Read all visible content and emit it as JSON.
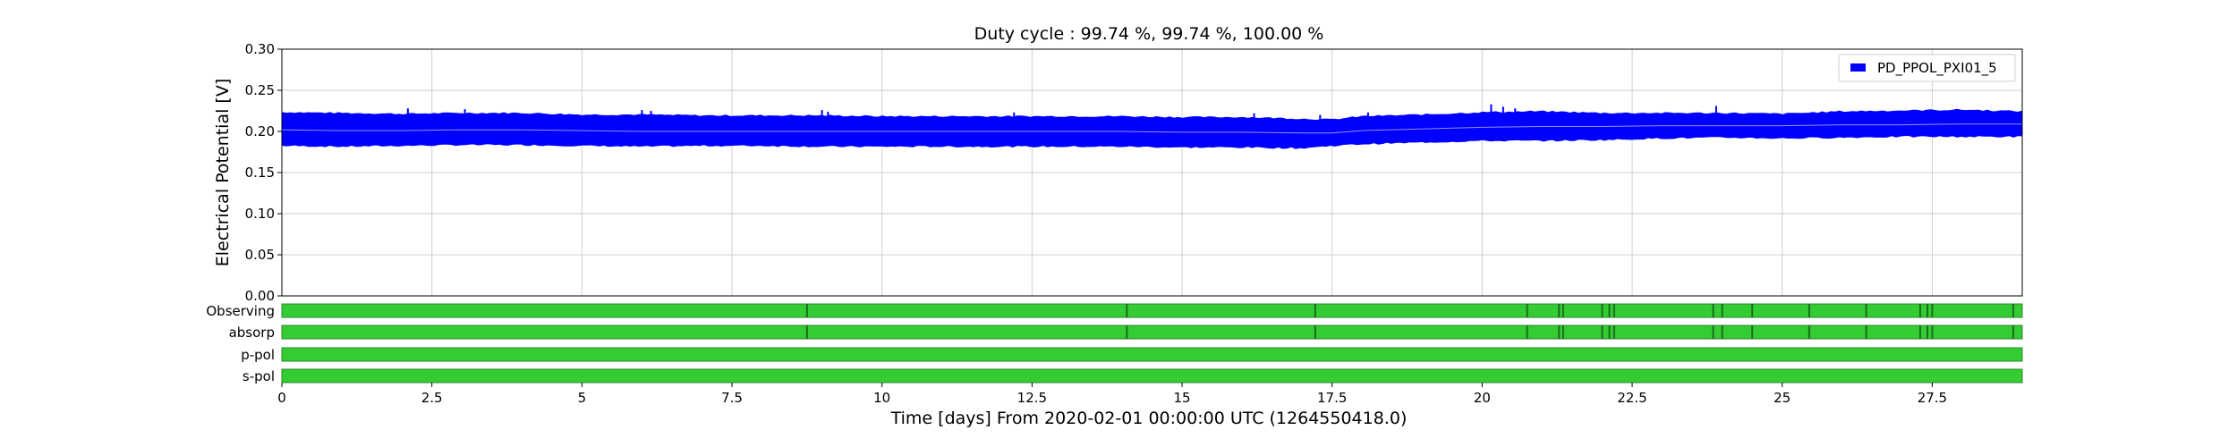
{
  "chart_data": {
    "type": "area",
    "title": "Duty cycle : 99.74 %, 99.74 %, 100.00 %",
    "xlabel": "Time [days] From 2020-02-01 00:00:00 UTC (1264550418.0)",
    "ylabel": "Electrical Potential [V]",
    "xlim": [
      0,
      29
    ],
    "ylim": [
      0,
      0.3
    ],
    "x_ticks": [
      0,
      2.5,
      5,
      7.5,
      10,
      12.5,
      15,
      17.5,
      20,
      22.5,
      25,
      27.5
    ],
    "x_tick_labels": [
      "0",
      "2.5",
      "5",
      "7.5",
      "10",
      "12.5",
      "15",
      "17.5",
      "20",
      "22.5",
      "25",
      "27.5"
    ],
    "y_ticks": [
      0,
      0.05,
      0.1,
      0.15,
      0.2,
      0.25,
      0.3
    ],
    "y_tick_labels": [
      "0.00",
      "0.05",
      "0.10",
      "0.15",
      "0.20",
      "0.25",
      "0.30"
    ],
    "grid": true,
    "legend_position": "top-right",
    "series": [
      {
        "name": "PD_PPOL_PXI01_5",
        "color": "#0000ff",
        "x": [
          0,
          1,
          2,
          3,
          4,
          5,
          6,
          7,
          8,
          9,
          10,
          11,
          12,
          13,
          14,
          15,
          16,
          17,
          17.5,
          18,
          19,
          20,
          21,
          22,
          23,
          24,
          25,
          26,
          27,
          28,
          29
        ],
        "max": [
          0.223,
          0.222,
          0.221,
          0.222,
          0.222,
          0.22,
          0.22,
          0.219,
          0.219,
          0.219,
          0.218,
          0.218,
          0.218,
          0.218,
          0.218,
          0.217,
          0.217,
          0.215,
          0.214,
          0.218,
          0.22,
          0.223,
          0.224,
          0.222,
          0.222,
          0.222,
          0.221,
          0.224,
          0.225,
          0.226,
          0.224
        ],
        "min": [
          0.183,
          0.182,
          0.183,
          0.184,
          0.184,
          0.183,
          0.182,
          0.183,
          0.183,
          0.182,
          0.182,
          0.182,
          0.182,
          0.182,
          0.182,
          0.181,
          0.181,
          0.18,
          0.183,
          0.185,
          0.187,
          0.189,
          0.189,
          0.19,
          0.192,
          0.193,
          0.192,
          0.193,
          0.194,
          0.194,
          0.194
        ],
        "mean": [
          0.202,
          0.201,
          0.201,
          0.202,
          0.202,
          0.201,
          0.2,
          0.2,
          0.2,
          0.2,
          0.2,
          0.2,
          0.2,
          0.2,
          0.2,
          0.199,
          0.199,
          0.198,
          0.198,
          0.201,
          0.203,
          0.205,
          0.206,
          0.206,
          0.207,
          0.207,
          0.207,
          0.208,
          0.208,
          0.209,
          0.209
        ],
        "spikes": [
          {
            "x": 2.1,
            "y": 0.228
          },
          {
            "x": 3.05,
            "y": 0.227
          },
          {
            "x": 6.0,
            "y": 0.226
          },
          {
            "x": 6.15,
            "y": 0.225
          },
          {
            "x": 9.0,
            "y": 0.226
          },
          {
            "x": 9.1,
            "y": 0.224
          },
          {
            "x": 12.2,
            "y": 0.223
          },
          {
            "x": 16.2,
            "y": 0.222
          },
          {
            "x": 17.3,
            "y": 0.22
          },
          {
            "x": 18.1,
            "y": 0.223
          },
          {
            "x": 20.15,
            "y": 0.233
          },
          {
            "x": 20.35,
            "y": 0.23
          },
          {
            "x": 20.55,
            "y": 0.228
          },
          {
            "x": 23.9,
            "y": 0.231
          }
        ]
      }
    ],
    "segments": {
      "labels": [
        "Observing",
        "absorp",
        "p-pol",
        "s-pol"
      ],
      "on_color": "#33cc33",
      "off_color": "#1a6e1a",
      "gaps": [
        [
          8.75,
          14.08,
          17.22,
          20.75,
          21.28,
          21.35,
          22.0,
          22.12,
          22.2,
          23.85,
          24.0,
          24.5,
          25.45,
          26.4,
          27.3,
          27.42,
          27.5,
          28.85
        ],
        [
          8.75,
          14.08,
          17.22,
          20.75,
          21.28,
          21.35,
          22.0,
          22.12,
          22.2,
          23.85,
          24.0,
          24.5,
          25.45,
          26.4,
          27.3,
          27.42,
          27.5,
          28.85
        ],
        [],
        []
      ]
    }
  }
}
